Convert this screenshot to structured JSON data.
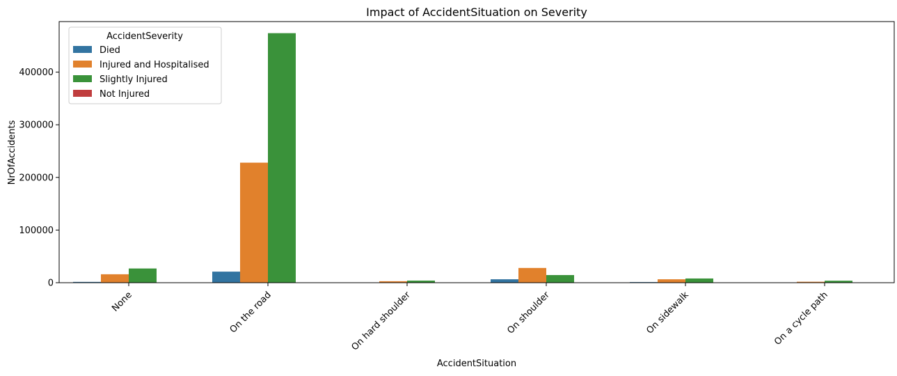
{
  "chart_data": {
    "type": "bar",
    "title": "Impact of AccidentSituation on Severity",
    "xlabel": "AccidentSituation",
    "ylabel": "NrOfAccidents",
    "categories": [
      "None",
      "On the road",
      "On hard shoulder",
      "On shoulder",
      "On sidewalk",
      "On a cycle path"
    ],
    "series": [
      {
        "name": "Died",
        "color": "#3274a1",
        "values": [
          1500,
          21000,
          300,
          6500,
          1200,
          200
        ]
      },
      {
        "name": "Injured and Hospitalised",
        "color": "#e1812c",
        "values": [
          16000,
          228000,
          2800,
          28000,
          6500,
          1800
        ]
      },
      {
        "name": "Slightly Injured",
        "color": "#3a923a",
        "values": [
          27000,
          474000,
          4000,
          14500,
          8000,
          3800
        ]
      },
      {
        "name": "Not Injured",
        "color": "#c03d3e",
        "values": [
          0,
          0,
          0,
          0,
          0,
          0
        ]
      }
    ],
    "ylim": [
      0,
      496000
    ],
    "yticks": [
      0,
      100000,
      200000,
      300000,
      400000
    ],
    "ytick_labels": [
      "0",
      "100000",
      "200000",
      "300000",
      "400000"
    ],
    "legend": {
      "title": "AccidentSeverity",
      "position": "top-left"
    },
    "grid": false
  }
}
